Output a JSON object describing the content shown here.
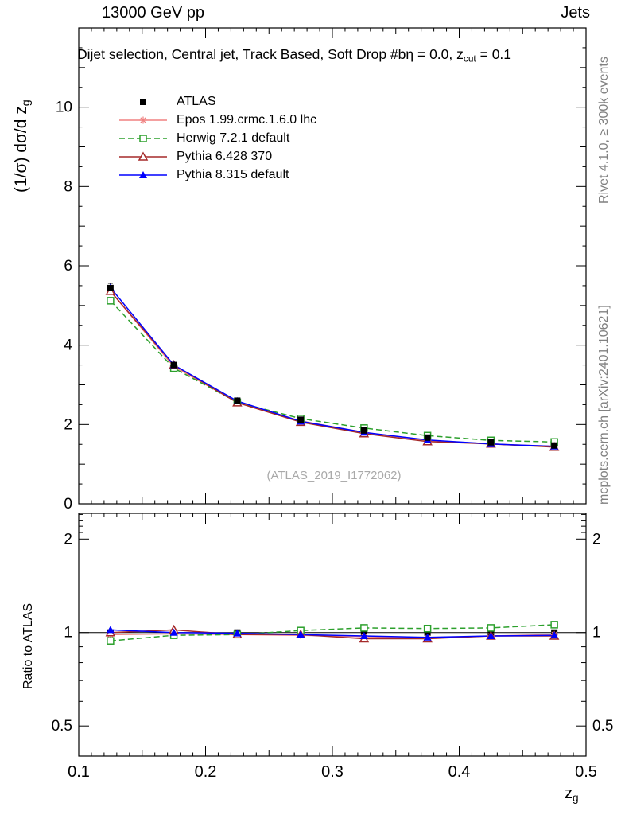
{
  "page": {
    "top_left": "13000 GeV pp",
    "top_right": "Jets",
    "plot_title": {
      "pre": "Dijet selection, Central jet, Track Based, Soft Drop #bη = 0.0, z",
      "sub": "cut",
      "post": " = 0.1"
    },
    "y_label_main": {
      "pre": "(1/σ) dσ/d z",
      "sub": "g"
    },
    "y_label_ratio": "Ratio to ATLAS",
    "x_label": {
      "pre": "z",
      "sub": "g"
    },
    "right_top": "Rivet 4.1.0, ≥ 300k events",
    "right_bottom": "mcplots.cern.ch [arXiv:2401.10621]",
    "watermark": "(ATLAS_2019_I1772062)"
  },
  "chart_data": {
    "type": "line",
    "title": "Dijet selection, Central jet, Track Based, Soft Drop #bη = 0.0, z_cut = 0.1",
    "xlabel": "z_g",
    "ylabel": "(1/σ) dσ/d z_g",
    "ratio_ylabel": "Ratio to ATLAS",
    "legend_position": "top-left",
    "grid": false,
    "xlim": [
      0.1,
      0.5
    ],
    "x_ticks": {
      "major": [
        0.1,
        0.2,
        0.3,
        0.4,
        0.5
      ],
      "labels": [
        "0.1",
        "0.2",
        "0.3",
        "0.4",
        "0.5"
      ],
      "medium_step": 0.05,
      "minor_step": 0.01
    },
    "main_panel": {
      "ylim": [
        0,
        12
      ],
      "ticks_major": [
        0,
        2,
        4,
        6,
        8,
        10
      ],
      "tick_labels": [
        "0",
        "2",
        "4",
        "6",
        "8",
        "10"
      ],
      "medium_step": 1,
      "minor_step": 0.5
    },
    "ratio_panel": {
      "scale": "log",
      "ylim": [
        0.4,
        2.42
      ],
      "ticks_major": [
        0.5,
        1,
        2
      ],
      "tick_labels": [
        "0.5",
        "1",
        "2"
      ],
      "ticks_minor": [
        0.6,
        0.7,
        0.8,
        0.9,
        2.1,
        2.2,
        2.3,
        2.4
      ],
      "ref_line": 1
    },
    "x": [
      0.125,
      0.175,
      0.225,
      0.275,
      0.325,
      0.375,
      0.425,
      0.475
    ],
    "series": [
      {
        "name": "atlas",
        "legend": "ATLAS",
        "color": "#000000",
        "marker": "square-filled",
        "linestyle": "none",
        "values": [
          5.44,
          3.5,
          2.6,
          2.12,
          1.85,
          1.67,
          1.55,
          1.47
        ],
        "errors": [
          0.12,
          0.06,
          0.04,
          0.03,
          0.03,
          0.02,
          0.02,
          0.02
        ],
        "ratio": [
          1,
          1,
          1,
          1,
          1,
          1,
          1,
          1
        ]
      },
      {
        "name": "epos",
        "legend": "Epos 1.99.crmc.1.6.0 lhc",
        "color": "#f08080",
        "marker": "star-open",
        "linestyle": "solid",
        "values": [
          5.36,
          3.46,
          2.56,
          2.09,
          1.8,
          1.6,
          1.51,
          1.45
        ],
        "ratio": [
          0.985,
          0.99,
          0.985,
          0.98,
          0.97,
          0.96,
          0.975,
          0.985
        ]
      },
      {
        "name": "herwig",
        "legend": "Herwig 7.2.1 default",
        "color": "#2ca02c",
        "marker": "square-open",
        "linestyle": "dashed",
        "values": [
          5.12,
          3.42,
          2.56,
          2.15,
          1.91,
          1.72,
          1.6,
          1.56
        ],
        "ratio": [
          0.94,
          0.98,
          0.985,
          1.015,
          1.035,
          1.03,
          1.035,
          1.06
        ]
      },
      {
        "name": "pythia6",
        "legend": "Pythia 6.428 370",
        "color": "#a52a2a",
        "marker": "triangle-open",
        "linestyle": "solid",
        "values": [
          5.36,
          3.5,
          2.55,
          2.06,
          1.77,
          1.57,
          1.51,
          1.43
        ],
        "ratio": [
          1.0,
          1.02,
          0.985,
          0.985,
          0.955,
          0.955,
          0.975,
          0.975
        ]
      },
      {
        "name": "pythia8",
        "legend": "Pythia 8.315 default",
        "color": "#0000ff",
        "marker": "triangle-filled",
        "linestyle": "solid",
        "values": [
          5.45,
          3.5,
          2.59,
          2.08,
          1.8,
          1.61,
          1.51,
          1.45
        ],
        "ratio": [
          1.02,
          1.0,
          0.995,
          0.985,
          0.975,
          0.965,
          0.975,
          0.98
        ]
      }
    ]
  }
}
